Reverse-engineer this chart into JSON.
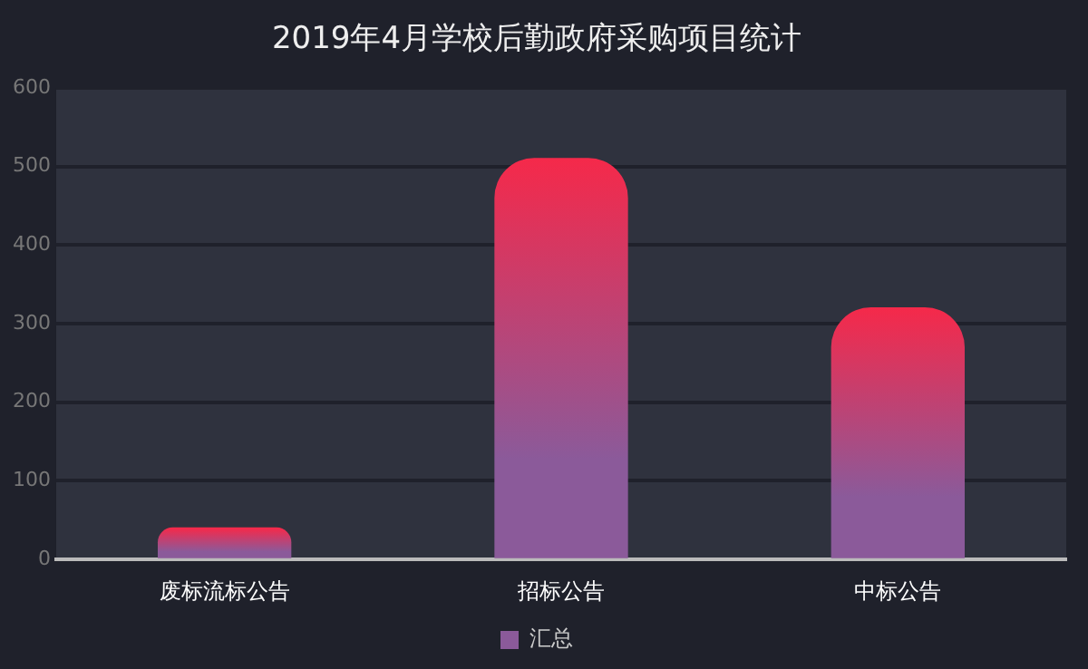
{
  "chart_data": {
    "type": "bar",
    "title": "2019年4月学校后勤政府采购项目统计",
    "categories": [
      "废标流标公告",
      "招标公告",
      "中标公告"
    ],
    "series": [
      {
        "name": "汇总",
        "color": "#f5294a",
        "values": [
          40,
          510,
          320
        ]
      }
    ],
    "ylim": [
      0,
      600
    ],
    "yticks": [
      0,
      100,
      200,
      300,
      400,
      500,
      600
    ],
    "grid": "y",
    "legend": "bottom"
  }
}
